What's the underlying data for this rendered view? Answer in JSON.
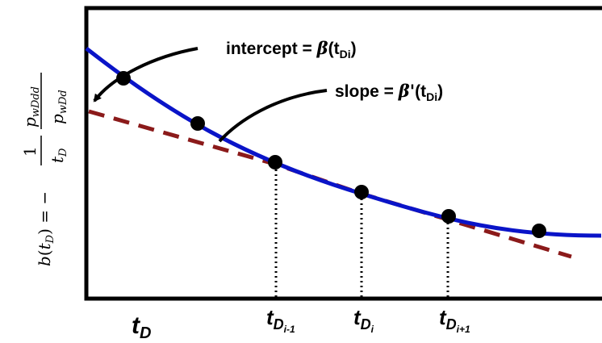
{
  "annotations": {
    "intercept_prefix": "intercept = ",
    "intercept_beta": "β",
    "intercept_arg": "(t",
    "intercept_sub": "Di",
    "intercept_close": ")",
    "slope_prefix": "slope = ",
    "slope_beta": "β'",
    "slope_arg": "(t",
    "slope_sub": "Di",
    "slope_close": ")"
  },
  "x_labels": {
    "tD_main": "t",
    "tD_sub": "D",
    "tDim1_main": "t",
    "tDim1_sub": "D",
    "tDim1_subsub": "i-1",
    "tDi_main": "t",
    "tDi_sub": "D",
    "tDi_subsub": "i",
    "tDip1_main": "t",
    "tDip1_sub": "D",
    "tDip1_subsub": "i+1"
  },
  "y_label": {
    "lhs": "b",
    "lhs_open": "(",
    "lhs_t": "t",
    "lhs_sub": "D",
    "lhs_close": ")",
    "eq": " = −",
    "num_left": "1",
    "den_left": "t",
    "den_left_sub": "D",
    "num_right": "p",
    "num_right_sub": "wDdd",
    "den_right": "p",
    "den_right_sub": "wDd"
  },
  "colors": {
    "curve": "#0a14c8",
    "tangent": "#8b1a1a",
    "points": "#000000",
    "axes": "#000000"
  }
}
